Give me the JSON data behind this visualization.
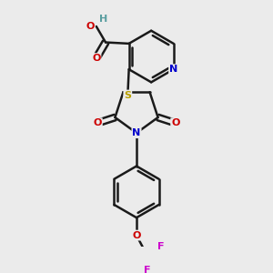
{
  "background_color": "#ebebeb",
  "bond_color": "#1a1a1a",
  "bond_width": 1.8,
  "atom_colors": {
    "C": "#1a1a1a",
    "H": "#5a9ea0",
    "O": "#cc0000",
    "N": "#0000cc",
    "S": "#b8a000",
    "F": "#cc00cc"
  },
  "figsize": [
    3.0,
    3.0
  ],
  "dpi": 100
}
